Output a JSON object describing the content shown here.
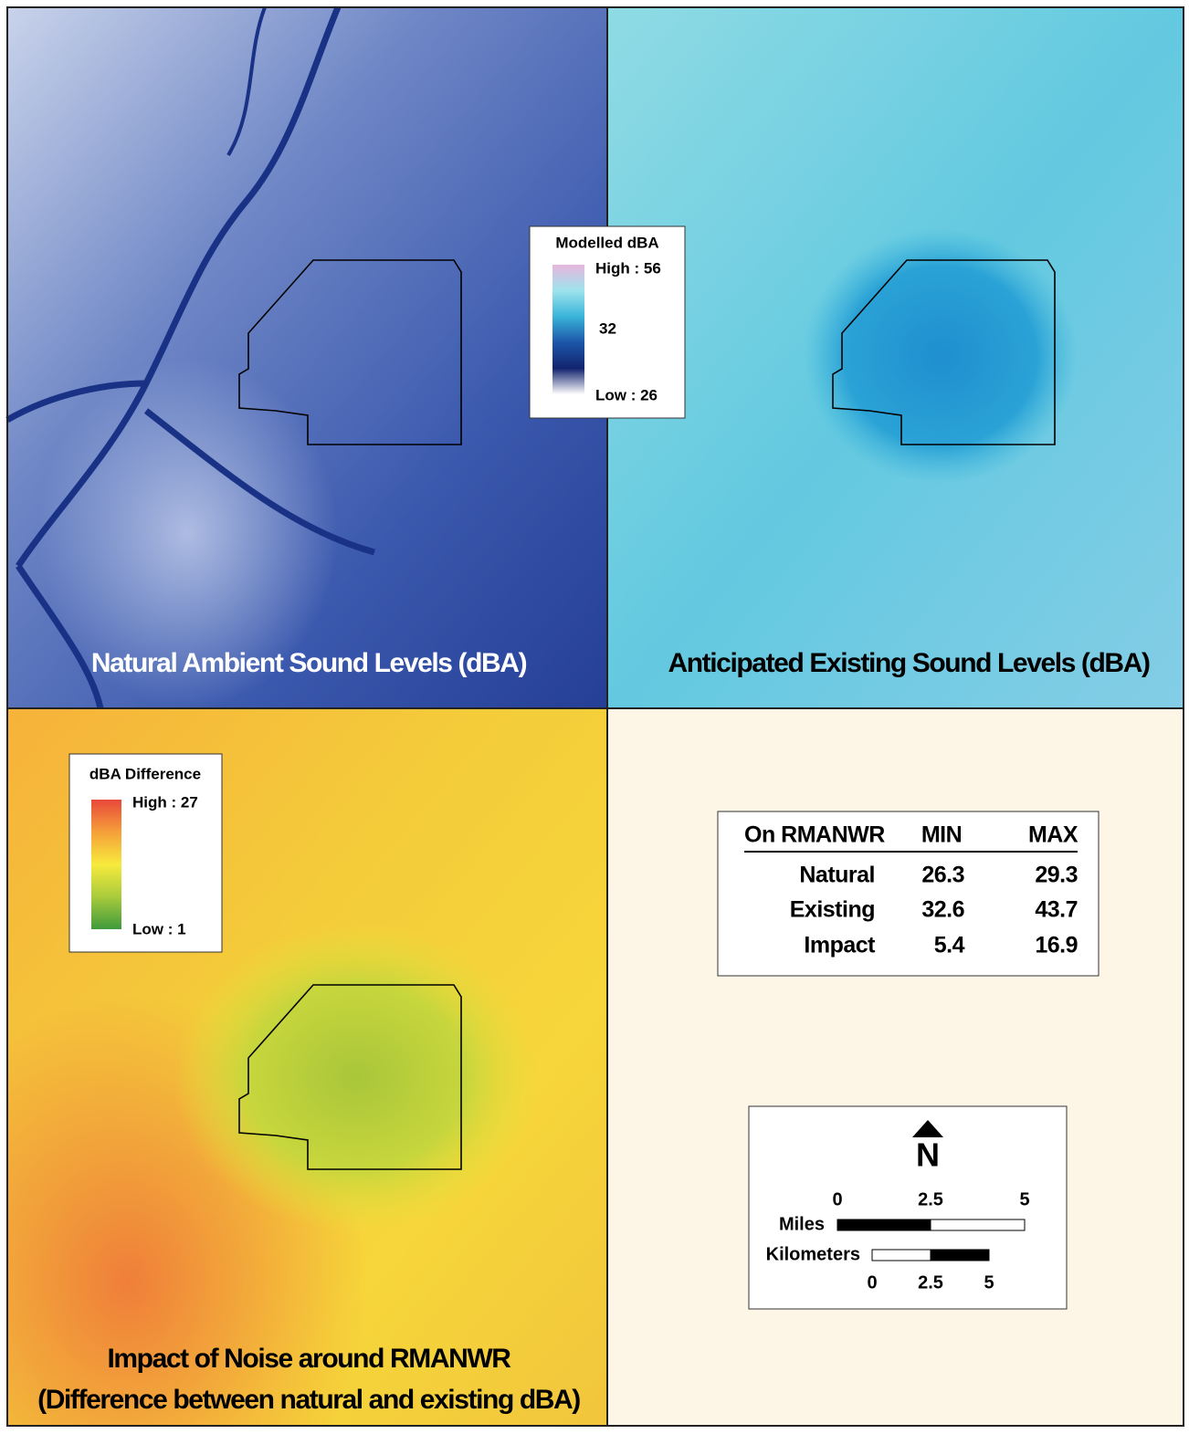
{
  "panels": [
    {
      "title": "Natural Ambient Sound Levels (dBA)"
    },
    {
      "title": "Anticipated Existing Sound Levels (dBA)"
    },
    {
      "title_lines": [
        "Impact of Noise around RMANWR",
        "(Difference between natural and existing dBA)"
      ]
    }
  ],
  "legend_modelled": {
    "title": "Modelled dBA",
    "high": "High : 56",
    "mid": "32",
    "low": "Low : 26"
  },
  "legend_difference": {
    "title": "dBA Difference",
    "high": "High : 27",
    "low": "Low : 1"
  },
  "table": {
    "header": [
      "On RMANWR",
      "MIN",
      "MAX"
    ],
    "rows": [
      [
        "Natural",
        "26.3",
        "29.3"
      ],
      [
        "Existing",
        "32.6",
        "43.7"
      ],
      [
        "Impact",
        "5.4",
        "16.9"
      ]
    ]
  },
  "scale": {
    "north": "N",
    "miles": {
      "label": "Miles",
      "ticks": [
        "0",
        "2.5",
        "5"
      ]
    },
    "kilometers": {
      "label": "Kilometers",
      "ticks": [
        "0",
        "2.5",
        "5"
      ]
    }
  }
}
